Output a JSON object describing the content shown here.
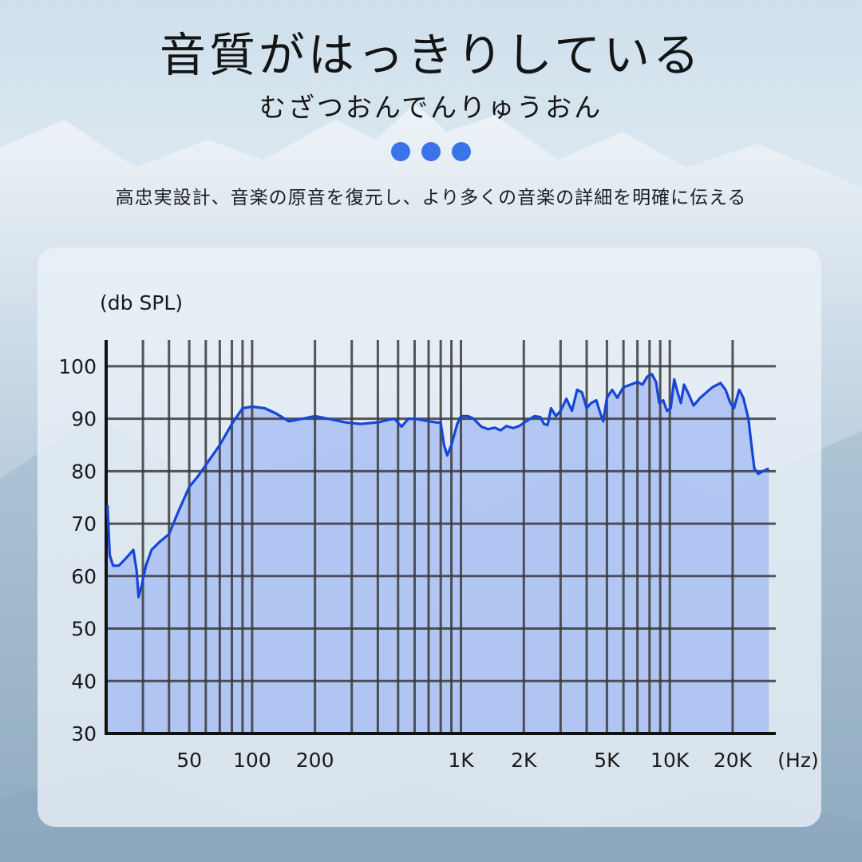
{
  "header": {
    "title": "音質がはっきりしている",
    "subtitle": "むざつおんでんりゅうおん",
    "description": "高忠実設計、音楽の原音を復元し、より多くの音楽の詳細を明確に伝える",
    "dots": 3
  },
  "colors": {
    "accent": "#3b74e8",
    "curve": "#1646d8",
    "fill": "#9fb8f4",
    "grid": "#3a3a3a"
  },
  "chart_data": {
    "type": "area",
    "ylabel": "(db SPL)",
    "xunit": "(Hz)",
    "x_scale": "log",
    "xlim": [
      20,
      30000
    ],
    "ylim": [
      30,
      105
    ],
    "yticks": [
      30,
      40,
      50,
      60,
      70,
      80,
      90,
      100
    ],
    "xtick_labels": [
      {
        "x": 50,
        "label": "50"
      },
      {
        "x": 100,
        "label": "100"
      },
      {
        "x": 200,
        "label": "200"
      },
      {
        "x": 1000,
        "label": "1K"
      },
      {
        "x": 2000,
        "label": "2K"
      },
      {
        "x": 5000,
        "label": "5K"
      },
      {
        "x": 10000,
        "label": "10K"
      },
      {
        "x": 20000,
        "label": "20K"
      }
    ],
    "grid_x": [
      30,
      40,
      50,
      60,
      70,
      80,
      90,
      100,
      200,
      300,
      400,
      500,
      600,
      700,
      800,
      900,
      1000,
      2000,
      3000,
      4000,
      5000,
      6000,
      7000,
      8000,
      9000,
      10000,
      20000
    ],
    "grid": true,
    "series": [
      {
        "values": [
          [
            20.3,
            73.5
          ],
          [
            20.8,
            64
          ],
          [
            21.6,
            62
          ],
          [
            23,
            62
          ],
          [
            25,
            63.5
          ],
          [
            27,
            65
          ],
          [
            28,
            61
          ],
          [
            28.6,
            56
          ],
          [
            29.5,
            58
          ],
          [
            31,
            62
          ],
          [
            33,
            65
          ],
          [
            36,
            66.5
          ],
          [
            40,
            68
          ],
          [
            44,
            72
          ],
          [
            50,
            77
          ],
          [
            55,
            79
          ],
          [
            62,
            82
          ],
          [
            70,
            85
          ],
          [
            80,
            89
          ],
          [
            90,
            92
          ],
          [
            100,
            92.3
          ],
          [
            115,
            92
          ],
          [
            130,
            91
          ],
          [
            150,
            89.5
          ],
          [
            175,
            90
          ],
          [
            200,
            90.5
          ],
          [
            230,
            90
          ],
          [
            280,
            89.3
          ],
          [
            330,
            89
          ],
          [
            400,
            89.3
          ],
          [
            450,
            89.8
          ],
          [
            480,
            90
          ],
          [
            520,
            88.5
          ],
          [
            560,
            90
          ],
          [
            600,
            90
          ],
          [
            680,
            89.6
          ],
          [
            760,
            89.3
          ],
          [
            800,
            89.2
          ],
          [
            830,
            85
          ],
          [
            860,
            83
          ],
          [
            900,
            85
          ],
          [
            960,
            89
          ],
          [
            1000,
            90.5
          ],
          [
            1080,
            90.5
          ],
          [
            1150,
            90
          ],
          [
            1250,
            88.5
          ],
          [
            1350,
            88
          ],
          [
            1450,
            88.3
          ],
          [
            1550,
            87.8
          ],
          [
            1650,
            88.6
          ],
          [
            1780,
            88.2
          ],
          [
            1900,
            88.6
          ],
          [
            2050,
            89.5
          ],
          [
            2250,
            90.5
          ],
          [
            2400,
            90.3
          ],
          [
            2500,
            89
          ],
          [
            2600,
            88.8
          ],
          [
            2700,
            92
          ],
          [
            2850,
            90.5
          ],
          [
            3000,
            91.5
          ],
          [
            3200,
            93.8
          ],
          [
            3400,
            91.5
          ],
          [
            3600,
            95.5
          ],
          [
            3800,
            95
          ],
          [
            4000,
            92
          ],
          [
            4200,
            93
          ],
          [
            4450,
            93.5
          ],
          [
            4650,
            91
          ],
          [
            4800,
            89.5
          ],
          [
            5000,
            94
          ],
          [
            5300,
            95.5
          ],
          [
            5600,
            94
          ],
          [
            6000,
            96
          ],
          [
            6500,
            96.5
          ],
          [
            7000,
            97
          ],
          [
            7400,
            96.5
          ],
          [
            7800,
            98
          ],
          [
            8200,
            98.5
          ],
          [
            8600,
            97
          ],
          [
            8900,
            93
          ],
          [
            9300,
            93.5
          ],
          [
            9700,
            91.5
          ],
          [
            10100,
            92
          ],
          [
            10500,
            97.5
          ],
          [
            10900,
            95
          ],
          [
            11300,
            93
          ],
          [
            11700,
            96.5
          ],
          [
            12200,
            95
          ],
          [
            13000,
            92.5
          ],
          [
            14000,
            94
          ],
          [
            16000,
            96
          ],
          [
            17500,
            96.8
          ],
          [
            18500,
            95.5
          ],
          [
            19500,
            93
          ],
          [
            20300,
            92
          ],
          [
            21500,
            95.5
          ],
          [
            22500,
            94
          ],
          [
            23800,
            90
          ],
          [
            24600,
            85
          ],
          [
            25400,
            80.5
          ],
          [
            26500,
            79.5
          ],
          [
            28000,
            80
          ],
          [
            29800,
            80.5
          ]
        ]
      }
    ]
  }
}
